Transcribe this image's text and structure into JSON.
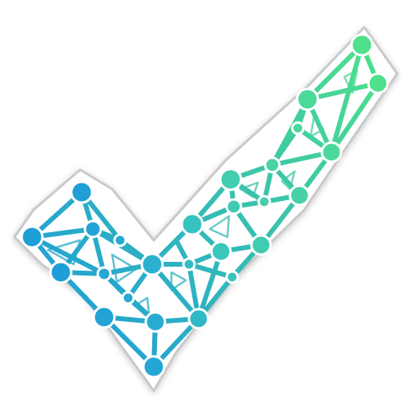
{
  "logo": {
    "icon": "network-checkmark-icon",
    "gradient_start": "#1f9ed8",
    "gradient_end": "#4ee08a",
    "sticker_fill": "#ffffff",
    "sticker_outline": "#c9c9c9"
  }
}
